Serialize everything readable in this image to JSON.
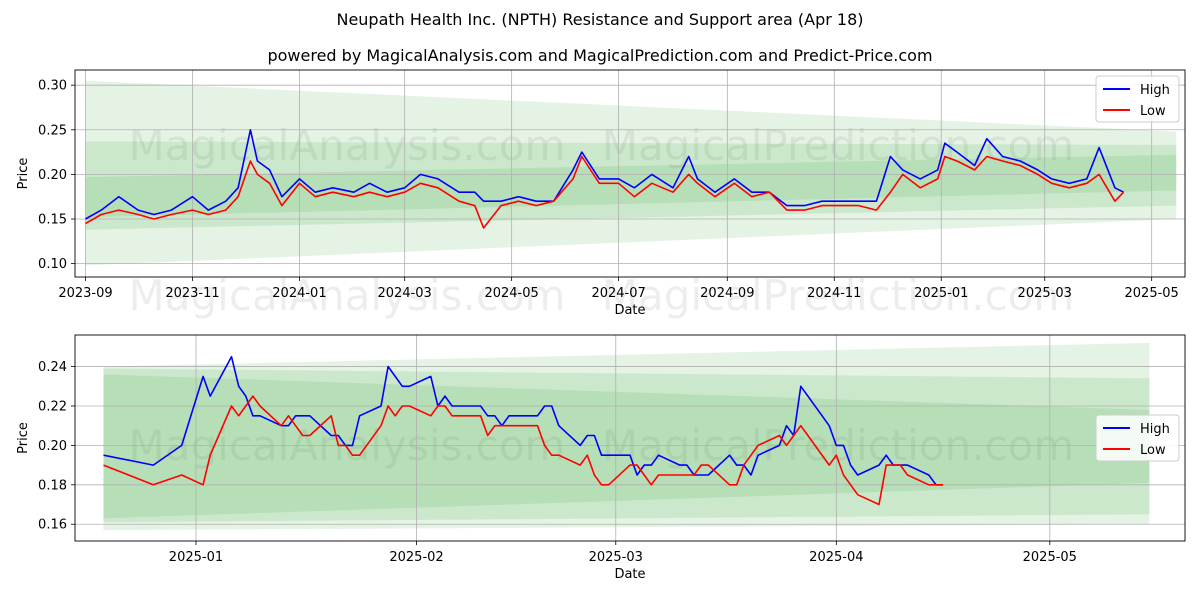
{
  "title": "Neupath Health Inc. (NPTH) Resistance and Support area (Apr 18)",
  "subtitle": "powered by MagicalAnalysis.com and MagicalPrediction.com and Predict-Price.com",
  "watermark": [
    "MagicalAnalysis.com",
    "MagicalPrediction.com"
  ],
  "colors": {
    "high": "#0000ff",
    "low": "#ff0000",
    "band": "#2ca02c",
    "grid": "#b0b0b0"
  },
  "chart_data": [
    {
      "type": "line",
      "xlabel": "Date",
      "ylabel": "Price",
      "xlim": [
        "2023-08-26",
        "2025-05-20"
      ],
      "ylim": [
        0.085,
        0.317
      ],
      "yticks": [
        "0.10",
        "0.15",
        "0.20",
        "0.25",
        "0.30"
      ],
      "xticks": [
        "2023-09",
        "2023-11",
        "2024-01",
        "2024-03",
        "2024-05",
        "2024-07",
        "2024-09",
        "2024-11",
        "2025-01",
        "2025-03",
        "2025-05"
      ],
      "legend": "top-right",
      "grid": true,
      "bands": [
        {
          "x": [
            "2023-09-01",
            "2025-05-15"
          ],
          "upper": [
            0.305,
            0.248
          ],
          "lower": [
            0.098,
            0.15
          ]
        },
        {
          "x": [
            "2023-09-01",
            "2025-05-15"
          ],
          "upper": [
            0.237,
            0.233
          ],
          "lower": [
            0.138,
            0.165
          ]
        },
        {
          "x": [
            "2023-09-01",
            "2025-05-15"
          ],
          "upper": [
            0.197,
            0.222
          ],
          "lower": [
            0.152,
            0.182
          ]
        }
      ],
      "x": [
        "2023-09-01",
        "2023-09-10",
        "2023-09-20",
        "2023-10-01",
        "2023-10-10",
        "2023-10-20",
        "2023-11-01",
        "2023-11-10",
        "2023-11-20",
        "2023-11-27",
        "2023-12-04",
        "2023-12-08",
        "2023-12-15",
        "2023-12-22",
        "2024-01-01",
        "2024-01-10",
        "2024-01-20",
        "2024-02-01",
        "2024-02-10",
        "2024-02-20",
        "2024-03-01",
        "2024-03-10",
        "2024-03-20",
        "2024-04-01",
        "2024-04-10",
        "2024-04-15",
        "2024-04-25",
        "2024-05-05",
        "2024-05-15",
        "2024-05-25",
        "2024-06-05",
        "2024-06-10",
        "2024-06-20",
        "2024-07-01",
        "2024-07-10",
        "2024-07-20",
        "2024-08-01",
        "2024-08-10",
        "2024-08-15",
        "2024-08-25",
        "2024-09-05",
        "2024-09-15",
        "2024-09-25",
        "2024-10-05",
        "2024-10-15",
        "2024-10-25",
        "2024-11-05",
        "2024-11-15",
        "2024-11-25",
        "2024-12-03",
        "2024-12-10",
        "2024-12-20",
        "2024-12-30",
        "2025-01-03",
        "2025-01-10",
        "2025-01-20",
        "2025-01-27",
        "2025-02-05",
        "2025-02-15",
        "2025-02-25",
        "2025-03-05",
        "2025-03-15",
        "2025-03-25",
        "2025-04-01",
        "2025-04-10",
        "2025-04-15"
      ],
      "series": [
        {
          "name": "High",
          "values": [
            0.15,
            0.16,
            0.175,
            0.16,
            0.155,
            0.16,
            0.175,
            0.16,
            0.17,
            0.185,
            0.25,
            0.215,
            0.205,
            0.175,
            0.195,
            0.18,
            0.185,
            0.18,
            0.19,
            0.18,
            0.185,
            0.2,
            0.195,
            0.18,
            0.18,
            0.17,
            0.17,
            0.175,
            0.17,
            0.17,
            0.205,
            0.225,
            0.195,
            0.195,
            0.185,
            0.2,
            0.185,
            0.22,
            0.195,
            0.18,
            0.195,
            0.18,
            0.18,
            0.165,
            0.165,
            0.17,
            0.17,
            0.17,
            0.17,
            0.22,
            0.205,
            0.195,
            0.205,
            0.235,
            0.225,
            0.21,
            0.24,
            0.22,
            0.215,
            0.205,
            0.195,
            0.19,
            0.195,
            0.23,
            0.185,
            0.18
          ]
        },
        {
          "name": "Low",
          "values": [
            0.145,
            0.155,
            0.16,
            0.155,
            0.15,
            0.155,
            0.16,
            0.155,
            0.16,
            0.175,
            0.215,
            0.2,
            0.19,
            0.165,
            0.19,
            0.175,
            0.18,
            0.175,
            0.18,
            0.175,
            0.18,
            0.19,
            0.185,
            0.17,
            0.165,
            0.14,
            0.165,
            0.17,
            0.165,
            0.17,
            0.195,
            0.22,
            0.19,
            0.19,
            0.175,
            0.19,
            0.18,
            0.2,
            0.19,
            0.175,
            0.19,
            0.175,
            0.18,
            0.16,
            0.16,
            0.165,
            0.165,
            0.165,
            0.16,
            0.18,
            0.2,
            0.185,
            0.195,
            0.22,
            0.215,
            0.205,
            0.22,
            0.215,
            0.21,
            0.2,
            0.19,
            0.185,
            0.19,
            0.2,
            0.17,
            0.18
          ]
        }
      ]
    },
    {
      "type": "line",
      "xlabel": "Date",
      "ylabel": "Price",
      "xlim": [
        "2024-12-15",
        "2025-05-20"
      ],
      "ylim": [
        0.1515,
        0.256
      ],
      "yticks": [
        "0.16",
        "0.18",
        "0.20",
        "0.22",
        "0.24"
      ],
      "xticks": [
        "2025-01",
        "2025-02",
        "2025-03",
        "2025-04",
        "2025-05"
      ],
      "legend": "center-right",
      "grid": true,
      "bands": [
        {
          "x": [
            "2024-12-19",
            "2025-05-15"
          ],
          "upper": [
            0.24,
            0.252
          ],
          "lower": [
            0.157,
            0.16
          ]
        },
        {
          "x": [
            "2024-12-19",
            "2025-05-15"
          ],
          "upper": [
            0.239,
            0.234
          ],
          "lower": [
            0.161,
            0.165
          ]
        },
        {
          "x": [
            "2024-12-19",
            "2025-05-15"
          ],
          "upper": [
            0.236,
            0.218
          ],
          "lower": [
            0.163,
            0.181
          ]
        }
      ],
      "x": [
        "2024-12-19",
        "2024-12-26",
        "2024-12-30",
        "2025-01-02",
        "2025-01-03",
        "2025-01-06",
        "2025-01-07",
        "2025-01-08",
        "2025-01-09",
        "2025-01-10",
        "2025-01-13",
        "2025-01-14",
        "2025-01-15",
        "2025-01-16",
        "2025-01-17",
        "2025-01-20",
        "2025-01-21",
        "2025-01-22",
        "2025-01-23",
        "2025-01-24",
        "2025-01-27",
        "2025-01-28",
        "2025-01-29",
        "2025-01-30",
        "2025-01-31",
        "2025-02-03",
        "2025-02-04",
        "2025-02-05",
        "2025-02-06",
        "2025-02-07",
        "2025-02-10",
        "2025-02-11",
        "2025-02-12",
        "2025-02-13",
        "2025-02-14",
        "2025-02-17",
        "2025-02-18",
        "2025-02-19",
        "2025-02-20",
        "2025-02-21",
        "2025-02-24",
        "2025-02-25",
        "2025-02-26",
        "2025-02-27",
        "2025-02-28",
        "2025-03-03",
        "2025-03-04",
        "2025-03-05",
        "2025-03-06",
        "2025-03-07",
        "2025-03-10",
        "2025-03-11",
        "2025-03-12",
        "2025-03-13",
        "2025-03-14",
        "2025-03-17",
        "2025-03-18",
        "2025-03-19",
        "2025-03-20",
        "2025-03-21",
        "2025-03-24",
        "2025-03-25",
        "2025-03-26",
        "2025-03-27",
        "2025-03-28",
        "2025-03-31",
        "2025-04-01",
        "2025-04-02",
        "2025-04-03",
        "2025-04-04",
        "2025-04-07",
        "2025-04-08",
        "2025-04-09",
        "2025-04-10",
        "2025-04-11",
        "2025-04-14",
        "2025-04-15",
        "2025-04-16"
      ],
      "series": [
        {
          "name": "High",
          "values": [
            0.195,
            0.19,
            0.2,
            0.235,
            0.225,
            0.245,
            0.23,
            0.225,
            0.215,
            0.215,
            0.21,
            0.21,
            0.215,
            0.215,
            0.215,
            0.205,
            0.205,
            0.2,
            0.2,
            0.215,
            0.22,
            0.24,
            0.235,
            0.23,
            0.23,
            0.235,
            0.22,
            0.225,
            0.22,
            0.22,
            0.22,
            0.215,
            0.215,
            0.21,
            0.215,
            0.215,
            0.215,
            0.22,
            0.22,
            0.21,
            0.2,
            0.205,
            0.205,
            0.195,
            0.195,
            0.195,
            0.185,
            0.19,
            0.19,
            0.195,
            0.19,
            0.19,
            0.185,
            0.185,
            0.185,
            0.195,
            0.19,
            0.19,
            0.185,
            0.195,
            0.2,
            0.21,
            0.205,
            0.23,
            0.225,
            0.21,
            0.2,
            0.2,
            0.19,
            0.185,
            0.19,
            0.195,
            0.19,
            0.19,
            0.19,
            0.185,
            0.18,
            0.18
          ]
        },
        {
          "name": "Low",
          "values": [
            0.19,
            0.18,
            0.185,
            0.18,
            0.195,
            0.22,
            0.215,
            0.22,
            0.225,
            0.22,
            0.21,
            0.215,
            0.21,
            0.205,
            0.205,
            0.215,
            0.2,
            0.2,
            0.195,
            0.195,
            0.21,
            0.22,
            0.215,
            0.22,
            0.22,
            0.215,
            0.22,
            0.22,
            0.215,
            0.215,
            0.215,
            0.205,
            0.21,
            0.21,
            0.21,
            0.21,
            0.21,
            0.2,
            0.195,
            0.195,
            0.19,
            0.195,
            0.185,
            0.18,
            0.18,
            0.19,
            0.19,
            0.185,
            0.18,
            0.185,
            0.185,
            0.185,
            0.185,
            0.19,
            0.19,
            0.18,
            0.18,
            0.19,
            0.195,
            0.2,
            0.205,
            0.2,
            0.205,
            0.21,
            0.205,
            0.19,
            0.195,
            0.185,
            0.18,
            0.175,
            0.17,
            0.19,
            0.19,
            0.19,
            0.185,
            0.18,
            0.18,
            0.18
          ]
        }
      ]
    }
  ]
}
